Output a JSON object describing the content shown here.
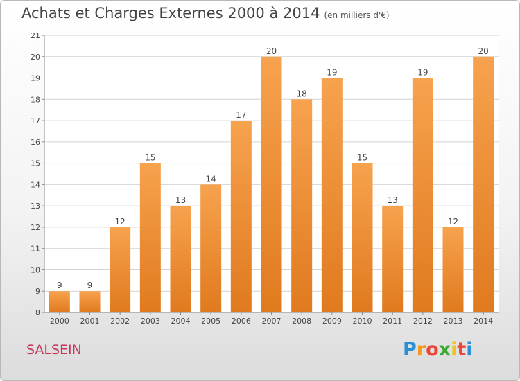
{
  "title": "Achats et Charges Externes 2000 à 2014",
  "subtitle": "(en milliers d'€)",
  "commune": "SALSEIN",
  "logo": {
    "letters": [
      "P",
      "r",
      "o",
      "x",
      "i",
      "t",
      "i"
    ],
    "colors": [
      "#2a8fd6",
      "#f29a1f",
      "#e8473a",
      "#3aaa35",
      "#f2c21f",
      "#e8473a",
      "#2a8fd6"
    ]
  },
  "colors": {
    "bar_light": "#f7a24e",
    "bar_dark": "#e07a1e",
    "text": "#444444"
  },
  "chart_data": {
    "type": "bar",
    "title": "Achats et Charges Externes 2000 à 2014",
    "subtitle": "(en milliers d'€)",
    "categories": [
      "2000",
      "2001",
      "2002",
      "2003",
      "2004",
      "2005",
      "2006",
      "2007",
      "2008",
      "2009",
      "2010",
      "2011",
      "2012",
      "2013",
      "2014"
    ],
    "values": [
      9,
      9,
      12,
      15,
      13,
      14,
      17,
      20,
      18,
      19,
      15,
      13,
      19,
      12,
      20
    ],
    "ylim": [
      8,
      21
    ],
    "yticks": [
      8,
      9,
      10,
      11,
      12,
      13,
      14,
      15,
      16,
      17,
      18,
      19,
      20,
      21
    ],
    "grid": true
  }
}
